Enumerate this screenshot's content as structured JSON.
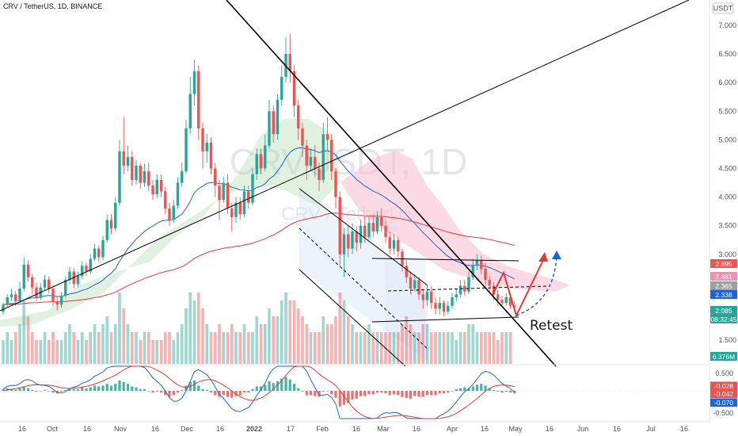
{
  "header": {
    "symbol_line": "CRV / TetherUS, 1D, BINANCE",
    "currency_badge": "USDT"
  },
  "watermark": {
    "line1": "CRVUSDT, 1D",
    "line2": "CRV / TetherUS"
  },
  "annotation": {
    "text": "Retest"
  },
  "colors": {
    "up": "#26a69a",
    "down": "#ef5350",
    "ema_red": "#e53935",
    "ema_blue": "#1e63d6",
    "cloud_green": "#a5d6a7",
    "cloud_red": "#f8bbd0",
    "trend": "#000000",
    "arrow_red": "#e53935",
    "arrow_blue": "#1e63d6"
  },
  "chart_data": {
    "type": "candlestick",
    "x_ticks": [
      "16",
      "Oct",
      "16",
      "Nov",
      "16",
      "Dec",
      "16",
      "2022",
      "17",
      "Feb",
      "16",
      "Mar",
      "16",
      "Apr",
      "16",
      "May",
      "16",
      "Jun",
      "16",
      "Jul",
      "16"
    ],
    "y_ticks": [
      "7.000",
      "6.500",
      "6.000",
      "5.500",
      "5.000",
      "4.500",
      "4.000",
      "3.500",
      "3.000",
      "1.500"
    ],
    "ylim": [
      1.5,
      7.0
    ],
    "price_tags": [
      {
        "value": "2.895",
        "color": "#ef5350"
      },
      {
        "value": "2.461",
        "color": "#f48fb1"
      },
      {
        "value": "2.365",
        "color": "#9e9e9e"
      },
      {
        "value": "2.338",
        "color": "#1e63d6"
      },
      {
        "value": "2.085",
        "color": "#26a69a"
      },
      {
        "value": "08:32:45",
        "color": "#26a69a"
      },
      {
        "value": "6.376M",
        "color": "#26a69a"
      }
    ],
    "osc_ticks": [
      "0.500",
      "-0.500"
    ],
    "osc_tags": [
      {
        "value": "-0.028",
        "color": "#ef5350"
      },
      {
        "value": "-0.042",
        "color": "#ef5350"
      },
      {
        "value": "-0.070",
        "color": "#1e63d6"
      }
    ],
    "candles": [
      [
        2.0,
        2.12,
        1.95,
        2.16
      ],
      [
        2.12,
        2.25,
        2.08,
        2.3
      ],
      [
        2.25,
        2.3,
        2.18,
        2.4
      ],
      [
        2.3,
        2.18,
        2.1,
        2.36
      ],
      [
        2.18,
        2.4,
        2.15,
        2.52
      ],
      [
        2.4,
        2.82,
        2.35,
        2.95
      ],
      [
        2.82,
        2.6,
        2.52,
        2.9
      ],
      [
        2.6,
        2.42,
        2.3,
        2.66
      ],
      [
        2.42,
        2.24,
        2.18,
        2.5
      ],
      [
        2.24,
        2.42,
        2.2,
        2.5
      ],
      [
        2.42,
        2.56,
        2.38,
        2.64
      ],
      [
        2.56,
        2.4,
        2.32,
        2.62
      ],
      [
        2.4,
        2.18,
        2.1,
        2.46
      ],
      [
        2.18,
        2.12,
        2.02,
        2.26
      ],
      [
        2.12,
        2.28,
        2.06,
        2.34
      ],
      [
        2.28,
        2.55,
        2.24,
        2.62
      ],
      [
        2.55,
        2.7,
        2.48,
        2.78
      ],
      [
        2.7,
        2.48,
        2.4,
        2.76
      ],
      [
        2.48,
        2.62,
        2.42,
        2.7
      ],
      [
        2.62,
        2.8,
        2.56,
        2.88
      ],
      [
        2.8,
        2.7,
        2.62,
        2.86
      ],
      [
        2.7,
        2.92,
        2.66,
        3.0
      ],
      [
        2.92,
        3.1,
        2.88,
        3.18
      ],
      [
        3.1,
        2.95,
        2.86,
        3.16
      ],
      [
        2.95,
        3.25,
        2.9,
        3.32
      ],
      [
        3.25,
        3.6,
        3.2,
        3.7
      ],
      [
        3.6,
        3.45,
        3.35,
        3.7
      ],
      [
        3.45,
        3.9,
        3.4,
        4.0
      ],
      [
        3.9,
        4.8,
        3.85,
        5.0
      ],
      [
        4.8,
        4.55,
        4.4,
        5.4
      ],
      [
        4.55,
        4.7,
        4.45,
        4.9
      ],
      [
        4.7,
        4.3,
        4.2,
        4.8
      ],
      [
        4.3,
        4.55,
        4.22,
        4.65
      ],
      [
        4.55,
        4.25,
        4.15,
        4.6
      ],
      [
        4.25,
        4.45,
        4.18,
        4.58
      ],
      [
        4.45,
        4.2,
        4.1,
        4.6
      ],
      [
        4.2,
        4.05,
        3.95,
        4.3
      ],
      [
        4.05,
        4.3,
        3.98,
        4.4
      ],
      [
        4.3,
        4.1,
        4.0,
        4.4
      ],
      [
        4.1,
        3.8,
        3.7,
        4.18
      ],
      [
        3.8,
        3.6,
        3.5,
        3.9
      ],
      [
        3.6,
        3.85,
        3.55,
        3.95
      ],
      [
        3.85,
        4.25,
        3.8,
        4.35
      ],
      [
        4.25,
        4.45,
        4.18,
        4.6
      ],
      [
        4.45,
        5.2,
        4.4,
        5.35
      ],
      [
        5.2,
        5.8,
        5.1,
        6.1
      ],
      [
        5.8,
        6.2,
        5.6,
        6.4
      ],
      [
        6.2,
        5.2,
        5.0,
        6.3
      ],
      [
        5.2,
        4.8,
        4.5,
        5.3
      ],
      [
        4.8,
        4.95,
        4.6,
        5.1
      ],
      [
        4.95,
        4.5,
        4.4,
        5.05
      ],
      [
        4.5,
        4.2,
        4.0,
        4.6
      ],
      [
        4.2,
        3.95,
        3.6,
        4.3
      ],
      [
        3.95,
        4.25,
        3.9,
        4.35
      ],
      [
        4.25,
        3.8,
        3.7,
        4.4
      ],
      [
        3.8,
        3.65,
        3.4,
        3.9
      ],
      [
        3.65,
        3.9,
        3.55,
        4.0
      ],
      [
        3.9,
        3.7,
        3.6,
        4.0
      ],
      [
        3.7,
        4.1,
        3.65,
        4.2
      ],
      [
        4.1,
        3.9,
        3.8,
        4.2
      ],
      [
        3.9,
        4.4,
        3.85,
        4.5
      ],
      [
        4.4,
        4.75,
        4.3,
        4.85
      ],
      [
        4.75,
        4.5,
        4.4,
        4.85
      ],
      [
        4.5,
        4.9,
        4.45,
        5.1
      ],
      [
        4.9,
        5.5,
        4.85,
        5.7
      ],
      [
        5.5,
        5.1,
        4.95,
        5.6
      ],
      [
        5.1,
        5.7,
        5.0,
        5.8
      ],
      [
        5.7,
        6.1,
        5.6,
        6.3
      ],
      [
        6.1,
        6.5,
        6.0,
        6.8
      ],
      [
        6.5,
        6.2,
        6.0,
        6.85
      ],
      [
        6.2,
        5.6,
        5.4,
        6.3
      ],
      [
        5.6,
        5.2,
        5.0,
        5.7
      ],
      [
        5.2,
        4.9,
        4.7,
        5.3
      ],
      [
        4.9,
        4.55,
        4.3,
        5.0
      ],
      [
        4.55,
        4.7,
        4.45,
        4.85
      ],
      [
        4.7,
        4.5,
        4.35,
        4.9
      ],
      [
        4.5,
        4.3,
        4.1,
        4.6
      ],
      [
        4.3,
        5.1,
        4.25,
        5.3
      ],
      [
        5.1,
        5.0,
        4.8,
        5.4
      ],
      [
        5.0,
        4.45,
        4.3,
        5.1
      ],
      [
        4.45,
        4.0,
        3.8,
        4.5
      ],
      [
        4.0,
        3.0,
        2.8,
        4.1
      ],
      [
        3.0,
        3.35,
        2.6,
        3.45
      ],
      [
        3.35,
        3.1,
        2.95,
        3.5
      ],
      [
        3.1,
        3.4,
        3.0,
        3.55
      ],
      [
        3.4,
        3.2,
        3.05,
        3.5
      ],
      [
        3.2,
        3.5,
        3.1,
        3.6
      ],
      [
        3.5,
        3.3,
        3.2,
        3.65
      ],
      [
        3.3,
        3.55,
        3.25,
        3.65
      ],
      [
        3.55,
        3.4,
        3.3,
        3.7
      ],
      [
        3.4,
        3.65,
        3.35,
        3.75
      ],
      [
        3.65,
        3.5,
        3.4,
        3.8
      ],
      [
        3.5,
        3.3,
        3.2,
        3.6
      ],
      [
        3.3,
        3.1,
        3.0,
        3.4
      ],
      [
        3.1,
        3.25,
        3.0,
        3.35
      ],
      [
        3.25,
        3.05,
        2.95,
        3.3
      ],
      [
        3.05,
        2.8,
        2.7,
        3.1
      ],
      [
        2.8,
        2.6,
        2.5,
        2.9
      ],
      [
        2.6,
        2.4,
        2.3,
        2.7
      ],
      [
        2.4,
        2.55,
        2.35,
        2.65
      ],
      [
        2.55,
        2.3,
        2.2,
        2.6
      ],
      [
        2.3,
        2.2,
        2.05,
        2.4
      ],
      [
        2.2,
        2.35,
        2.1,
        2.45
      ],
      [
        2.35,
        2.15,
        2.05,
        2.45
      ],
      [
        2.15,
        2.05,
        1.95,
        2.25
      ],
      [
        2.05,
        2.15,
        1.95,
        2.25
      ],
      [
        2.15,
        2.0,
        1.92,
        2.2
      ],
      [
        2.0,
        2.1,
        1.95,
        2.18
      ],
      [
        2.1,
        2.25,
        2.05,
        2.32
      ],
      [
        2.25,
        2.3,
        2.18,
        2.4
      ],
      [
        2.3,
        2.45,
        2.25,
        2.55
      ],
      [
        2.45,
        2.35,
        2.28,
        2.55
      ],
      [
        2.35,
        2.6,
        2.3,
        2.7
      ],
      [
        2.6,
        2.8,
        2.55,
        2.92
      ],
      [
        2.8,
        2.9,
        2.72,
        3.0
      ],
      [
        2.9,
        2.75,
        2.65,
        2.98
      ],
      [
        2.75,
        2.55,
        2.45,
        2.85
      ],
      [
        2.55,
        2.45,
        2.35,
        2.62
      ],
      [
        2.45,
        2.3,
        2.2,
        2.52
      ],
      [
        2.3,
        2.2,
        2.1,
        2.38
      ],
      [
        2.2,
        2.15,
        2.08,
        2.28
      ],
      [
        2.15,
        2.25,
        2.1,
        2.32
      ],
      [
        2.25,
        2.1,
        2.05,
        2.3
      ],
      [
        2.1,
        2.08,
        2.02,
        2.18
      ]
    ],
    "volumes": [
      3,
      4,
      3,
      4,
      5,
      8,
      6,
      4,
      3,
      3,
      4,
      3,
      4,
      3,
      3,
      4,
      5,
      4,
      3,
      4,
      3,
      4,
      5,
      4,
      5,
      6,
      4,
      5,
      9,
      7,
      5,
      4,
      4,
      3,
      4,
      4,
      3,
      3,
      3,
      4,
      4,
      3,
      4,
      5,
      7,
      9,
      8,
      9,
      7,
      5,
      4,
      4,
      5,
      4,
      4,
      5,
      4,
      4,
      5,
      4,
      4,
      6,
      5,
      5,
      7,
      6,
      6,
      8,
      9,
      8,
      8,
      7,
      6,
      5,
      4,
      4,
      4,
      6,
      5,
      5,
      6,
      9,
      8,
      6,
      5,
      4,
      4,
      4,
      5,
      4,
      4,
      4,
      4,
      4,
      4,
      4,
      5,
      6,
      5,
      4,
      4,
      5,
      5,
      4,
      4,
      4,
      4,
      4,
      4,
      3,
      4,
      4,
      5,
      5,
      4,
      4,
      4,
      4,
      4,
      3,
      4,
      4,
      4
    ],
    "macd_hist": [
      0.02,
      0.03,
      0.02,
      0.01,
      0.03,
      0.05,
      0.03,
      0.01,
      -0.01,
      0.0,
      0.01,
      0.0,
      -0.02,
      -0.03,
      -0.01,
      0.01,
      0.03,
      0.02,
      0.02,
      0.04,
      0.03,
      0.04,
      0.06,
      0.05,
      0.06,
      0.08,
      0.06,
      0.08,
      0.12,
      0.1,
      0.08,
      0.05,
      0.04,
      0.02,
      0.02,
      0.0,
      -0.02,
      -0.01,
      -0.02,
      -0.05,
      -0.07,
      -0.05,
      -0.02,
      0.01,
      0.06,
      0.1,
      0.12,
      0.06,
      0.02,
      0.01,
      -0.02,
      -0.05,
      -0.07,
      -0.05,
      -0.07,
      -0.08,
      -0.06,
      -0.05,
      -0.02,
      -0.02,
      0.02,
      0.05,
      0.05,
      0.07,
      0.11,
      0.09,
      0.11,
      0.14,
      0.16,
      0.13,
      0.08,
      0.03,
      -0.01,
      -0.05,
      -0.05,
      -0.06,
      -0.07,
      -0.01,
      0.0,
      -0.04,
      -0.08,
      -0.18,
      -0.16,
      -0.14,
      -0.1,
      -0.09,
      -0.06,
      -0.06,
      -0.04,
      -0.04,
      -0.02,
      -0.02,
      -0.03,
      -0.05,
      -0.04,
      -0.05,
      -0.07,
      -0.08,
      -0.09,
      -0.06,
      -0.07,
      -0.07,
      -0.05,
      -0.05,
      -0.05,
      -0.03,
      -0.03,
      -0.02,
      0.0,
      0.02,
      0.03,
      0.04,
      0.03,
      0.05,
      0.07,
      0.08,
      0.06,
      0.03,
      0.01,
      -0.01,
      -0.02,
      -0.01,
      -0.02,
      -0.03
    ]
  }
}
